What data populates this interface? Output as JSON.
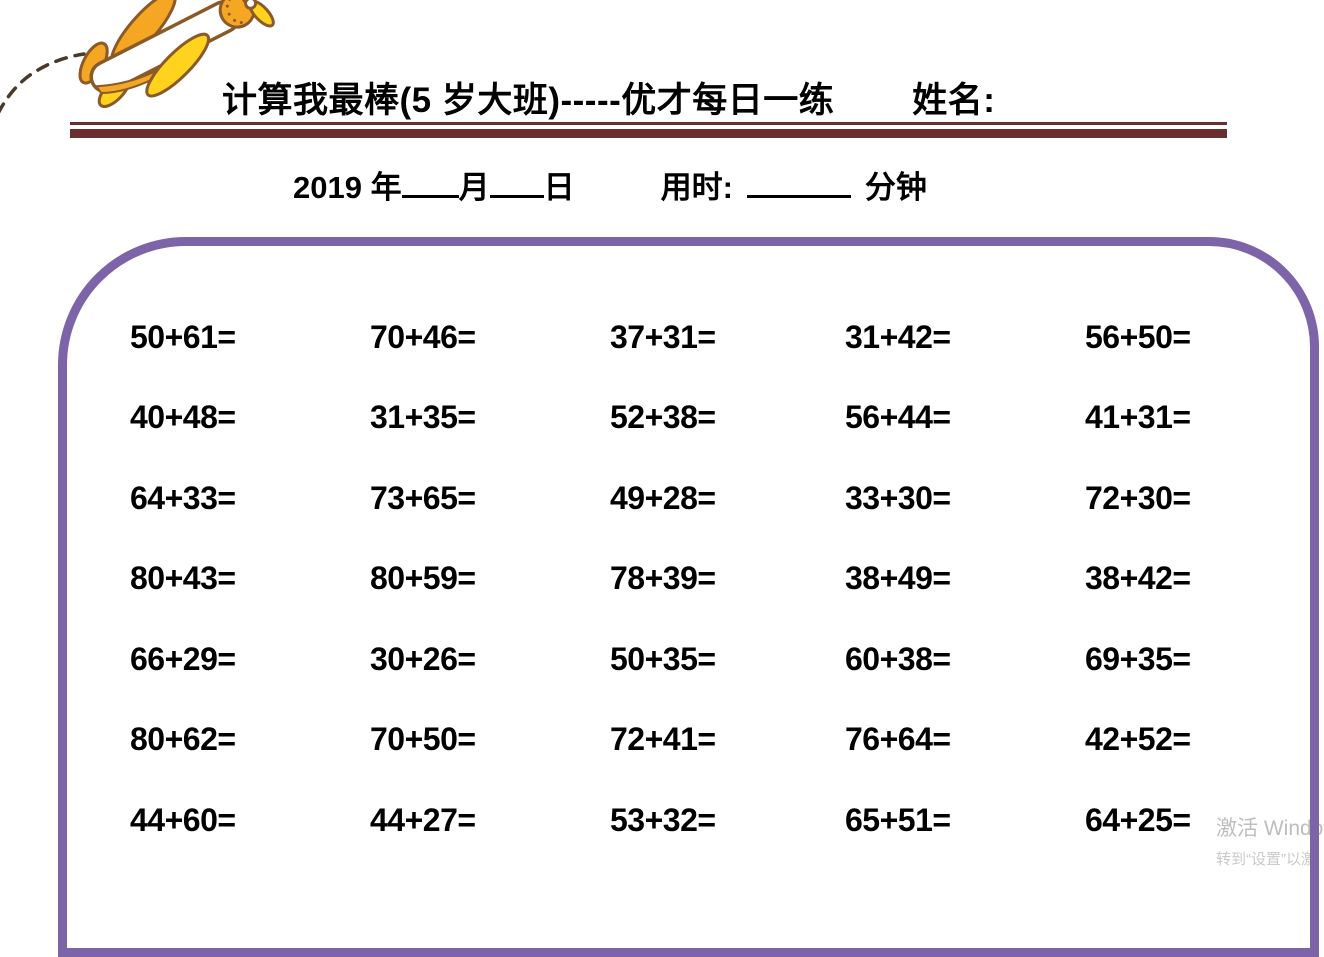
{
  "header": {
    "title": "计算我最棒(5 岁大班)-----优才每日一练",
    "name_label": "姓名:",
    "rule_color": "#6b2e2e"
  },
  "date_line": {
    "year_prefix": "2019 年",
    "month_label": "月",
    "day_label": "日",
    "time_label": "用时:",
    "minutes_label": "分钟"
  },
  "worksheet": {
    "border_color": "#7d63a8",
    "rows": [
      [
        "50+61=",
        "70+46=",
        "37+31=",
        "31+42=",
        "56+50="
      ],
      [
        "40+48=",
        "31+35=",
        "52+38=",
        "56+44=",
        "41+31="
      ],
      [
        "64+33=",
        "73+65=",
        "49+28=",
        "33+30=",
        "72+30="
      ],
      [
        "80+43=",
        "80+59=",
        "78+39=",
        "38+49=",
        "38+42="
      ],
      [
        "66+29=",
        "30+26=",
        "50+35=",
        "60+38=",
        "69+35="
      ],
      [
        "80+62=",
        "70+50=",
        "72+41=",
        "76+64=",
        "42+52="
      ],
      [
        "44+60=",
        "44+27=",
        "53+32=",
        "65+51=",
        "64+25="
      ]
    ]
  },
  "watermark": {
    "line1": "激活 Windo",
    "line2": "转到“设置”以激"
  },
  "decoration": {
    "airplane_icon": "yellow-biplane-with-dashed-trail",
    "plane_yellow": "#ffd21e",
    "plane_orange": "#f5a623",
    "plane_outline": "#8a5a28"
  }
}
